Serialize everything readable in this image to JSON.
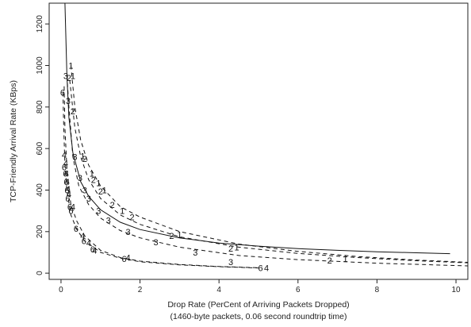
{
  "chart_data": {
    "type": "line",
    "xlabel": "Drop Rate (PerCent of Arriving Packets Dropped)",
    "xlabel2": "(1460-byte packets, 0.06 second roundtrip time)",
    "ylabel": "TCP-Friendly Arrival Rate (KBps)",
    "xlim": [
      -0.3,
      10.3
    ],
    "ylim": [
      -30,
      1300
    ],
    "xticks": [
      0,
      2,
      4,
      6,
      8,
      10
    ],
    "yticks": [
      0,
      200,
      400,
      600,
      800,
      1000,
      1200
    ],
    "grid": false,
    "legend": "none",
    "reference_curve": {
      "style": "solid",
      "points": [
        [
          0.1,
          1300
        ],
        [
          0.15,
          950
        ],
        [
          0.2,
          750
        ],
        [
          0.3,
          580
        ],
        [
          0.5,
          440
        ],
        [
          0.7,
          370
        ],
        [
          1.0,
          305
        ],
        [
          1.5,
          245
        ],
        [
          2.0,
          210
        ],
        [
          3.0,
          170
        ],
        [
          4.0,
          145
        ],
        [
          5.0,
          130
        ],
        [
          6.0,
          118
        ],
        [
          7.0,
          110
        ],
        [
          8.0,
          103
        ],
        [
          9.0,
          98
        ],
        [
          9.85,
          94
        ]
      ]
    },
    "series": [
      {
        "name": "1",
        "style": "dashed",
        "points": [
          [
            0.25,
            1000
          ],
          [
            0.35,
            800
          ],
          [
            0.5,
            640
          ],
          [
            0.7,
            520
          ],
          [
            1.0,
            420
          ],
          [
            1.5,
            320
          ],
          [
            2.0,
            270
          ],
          [
            3.0,
            200
          ],
          [
            4.5,
            140
          ],
          [
            6.0,
            105
          ],
          [
            7.5,
            80
          ],
          [
            9.0,
            63
          ],
          [
            10.3,
            52
          ]
        ],
        "marker_points": [
          [
            0.25,
            1000
          ],
          [
            0.3,
            950
          ],
          [
            0.55,
            565
          ],
          [
            0.78,
            480
          ],
          [
            0.95,
            435
          ],
          [
            1.1,
            400
          ],
          [
            1.55,
            300
          ],
          [
            3.0,
            185
          ],
          [
            4.45,
            125
          ],
          [
            7.2,
            70
          ]
        ]
      },
      {
        "name": "2",
        "style": "dashed",
        "points": [
          [
            0.22,
            930
          ],
          [
            0.35,
            700
          ],
          [
            0.5,
            560
          ],
          [
            0.7,
            450
          ],
          [
            1.0,
            360
          ],
          [
            1.5,
            280
          ],
          [
            2.0,
            235
          ],
          [
            3.0,
            175
          ],
          [
            4.5,
            125
          ],
          [
            6.0,
            95
          ],
          [
            7.5,
            75
          ],
          [
            9.0,
            60
          ],
          [
            10.3,
            50
          ]
        ],
        "marker_points": [
          [
            0.2,
            940
          ],
          [
            0.3,
            780
          ],
          [
            0.6,
            550
          ],
          [
            0.82,
            450
          ],
          [
            1.0,
            395
          ],
          [
            1.3,
            330
          ],
          [
            1.8,
            270
          ],
          [
            2.8,
            180
          ],
          [
            4.3,
            120
          ],
          [
            6.8,
            62
          ]
        ]
      },
      {
        "name": "3",
        "style": "dashed",
        "points": [
          [
            0.15,
            950
          ],
          [
            0.2,
            800
          ],
          [
            0.3,
            560
          ],
          [
            0.45,
            420
          ],
          [
            0.7,
            330
          ],
          [
            1.0,
            265
          ],
          [
            1.5,
            205
          ],
          [
            2.0,
            170
          ],
          [
            3.0,
            125
          ],
          [
            4.5,
            85
          ],
          [
            6.0,
            65
          ],
          [
            8.0,
            48
          ],
          [
            10.3,
            35
          ]
        ],
        "marker_points": [
          [
            0.12,
            950
          ],
          [
            0.18,
            830
          ],
          [
            0.35,
            560
          ],
          [
            0.48,
            460
          ],
          [
            0.6,
            400
          ],
          [
            0.7,
            360
          ],
          [
            0.95,
            300
          ],
          [
            1.2,
            255
          ],
          [
            1.7,
            200
          ],
          [
            2.4,
            150
          ],
          [
            3.4,
            100
          ],
          [
            4.3,
            55
          ]
        ]
      },
      {
        "name": "4",
        "style": "dashed",
        "points": [
          [
            0.08,
            900
          ],
          [
            0.1,
            700
          ],
          [
            0.15,
            500
          ],
          [
            0.25,
            330
          ],
          [
            0.4,
            250
          ],
          [
            0.6,
            180
          ],
          [
            1.0,
            110
          ],
          [
            1.5,
            75
          ],
          [
            2.0,
            58
          ],
          [
            3.0,
            42
          ],
          [
            4.0,
            32
          ],
          [
            5.0,
            26
          ]
        ],
        "marker_points": [
          [
            0.08,
            570
          ],
          [
            0.12,
            530
          ],
          [
            0.14,
            480
          ],
          [
            0.16,
            440
          ],
          [
            0.18,
            405
          ],
          [
            0.2,
            380
          ],
          [
            0.3,
            320
          ],
          [
            0.55,
            180
          ],
          [
            0.7,
            145
          ],
          [
            0.85,
            110
          ],
          [
            1.7,
            75
          ],
          [
            5.2,
            25
          ]
        ]
      },
      {
        "name": "6",
        "style": "dashed",
        "points": [
          [
            0.05,
            870
          ],
          [
            0.07,
            700
          ],
          [
            0.1,
            520
          ],
          [
            0.15,
            400
          ],
          [
            0.25,
            280
          ],
          [
            0.4,
            210
          ],
          [
            0.6,
            155
          ],
          [
            1.0,
            100
          ],
          [
            1.5,
            72
          ],
          [
            2.0,
            55
          ],
          [
            3.0,
            40
          ],
          [
            4.0,
            31
          ],
          [
            5.0,
            25
          ]
        ],
        "marker_points": [
          [
            0.04,
            870
          ],
          [
            0.08,
            510
          ],
          [
            0.11,
            480
          ],
          [
            0.13,
            440
          ],
          [
            0.15,
            400
          ],
          [
            0.17,
            360
          ],
          [
            0.22,
            320
          ],
          [
            0.25,
            300
          ],
          [
            0.38,
            215
          ],
          [
            0.58,
            155
          ],
          [
            0.8,
            115
          ],
          [
            1.6,
            70
          ],
          [
            5.05,
            25
          ]
        ]
      }
    ]
  }
}
